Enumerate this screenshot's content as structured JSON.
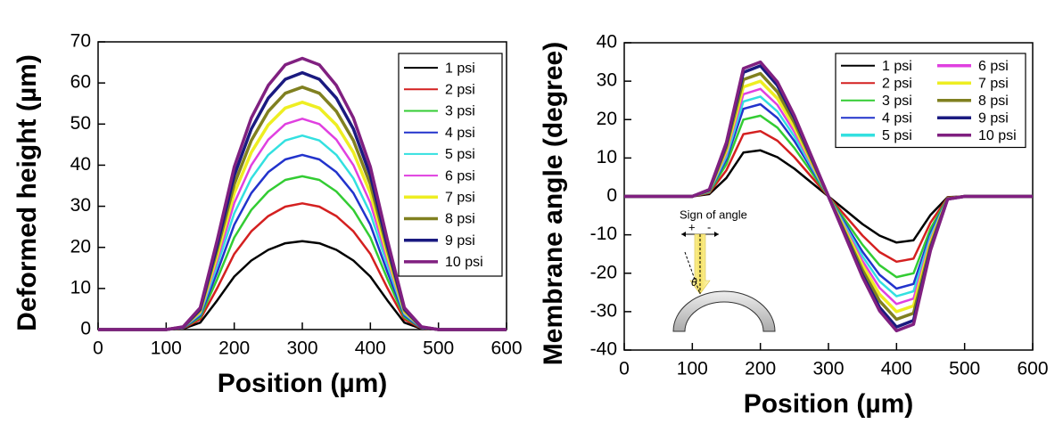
{
  "chart_data": [
    {
      "type": "line",
      "x_label": "Position (µm)",
      "y_label": "Deformed height (µm)",
      "x": [
        0,
        50,
        100,
        125,
        150,
        175,
        200,
        225,
        250,
        275,
        300,
        325,
        350,
        375,
        400,
        425,
        450,
        475,
        500,
        550,
        600
      ],
      "xlim": [
        0,
        600
      ],
      "xticks": [
        0,
        100,
        200,
        300,
        400,
        500,
        600
      ],
      "ylim": [
        0,
        70
      ],
      "yticks": [
        0,
        10,
        20,
        30,
        40,
        50,
        60,
        70
      ],
      "legend": "upper right",
      "legend_columns": 1,
      "series": [
        {
          "name": "1 psi",
          "color": "#000000",
          "values": [
            0,
            0,
            0,
            0.2,
            1.7,
            7.1,
            12.9,
            16.8,
            19.4,
            21,
            21.5,
            21,
            19.4,
            16.8,
            12.9,
            7.1,
            1.7,
            0.2,
            0,
            0,
            0
          ]
        },
        {
          "name": "2 psi",
          "color": "#d42020",
          "values": [
            0,
            0,
            0,
            0.3,
            2.5,
            10.1,
            18.4,
            23.9,
            27.6,
            29.9,
            30.7,
            29.9,
            27.6,
            23.9,
            18.4,
            10.1,
            2.5,
            0.3,
            0,
            0,
            0
          ]
        },
        {
          "name": "3 psi",
          "color": "#33cc33",
          "values": [
            0,
            0,
            0,
            0.4,
            3,
            12.3,
            22.4,
            29.1,
            33.6,
            36.4,
            37.3,
            36.4,
            33.6,
            29.1,
            22.4,
            12.3,
            3,
            0.4,
            0,
            0,
            0
          ]
        },
        {
          "name": "4 psi",
          "color": "#2233cc",
          "values": [
            0,
            0,
            0,
            0.4,
            3.4,
            14,
            25.5,
            33.2,
            38.3,
            41.4,
            42.5,
            41.4,
            38.3,
            33.2,
            25.5,
            14,
            3.4,
            0.4,
            0,
            0,
            0
          ]
        },
        {
          "name": "5 psi",
          "color": "#33e0e0",
          "values": [
            0,
            0,
            0,
            0.5,
            3.8,
            15.6,
            28.3,
            36.8,
            42.5,
            46,
            47.2,
            46,
            42.5,
            36.8,
            28.3,
            15.6,
            3.8,
            0.5,
            0,
            0,
            0
          ]
        },
        {
          "name": "6 psi",
          "color": "#e040e0",
          "values": [
            0,
            0,
            0,
            0.5,
            4.1,
            16.9,
            30.8,
            40,
            46.2,
            50,
            51.3,
            50,
            46.2,
            40,
            30.8,
            16.9,
            4.1,
            0.5,
            0,
            0,
            0
          ]
        },
        {
          "name": "7 psi",
          "color": "#eeee22",
          "values": [
            0,
            0,
            0,
            0.6,
            4.4,
            18.2,
            33.2,
            43.1,
            49.8,
            53.9,
            55.3,
            53.9,
            49.8,
            43.1,
            33.2,
            18.2,
            4.4,
            0.6,
            0,
            0,
            0
          ]
        },
        {
          "name": "8 psi",
          "color": "#808020",
          "values": [
            0,
            0,
            0,
            0.6,
            4.7,
            19.5,
            35.4,
            46,
            53.1,
            57.5,
            59,
            57.5,
            53.1,
            46,
            35.4,
            19.5,
            4.7,
            0.6,
            0,
            0,
            0
          ]
        },
        {
          "name": "9 psi",
          "color": "#1a1a80",
          "values": [
            0,
            0,
            0,
            0.6,
            5,
            20.6,
            37.5,
            48.8,
            56.3,
            60.9,
            62.5,
            60.9,
            56.3,
            48.8,
            37.5,
            20.6,
            5,
            0.6,
            0,
            0,
            0
          ]
        },
        {
          "name": "10 psi",
          "color": "#802080",
          "values": [
            0,
            0,
            0,
            0.7,
            5.3,
            21.8,
            39.6,
            51.5,
            59.4,
            64.4,
            66,
            64.4,
            59.4,
            51.5,
            39.6,
            21.8,
            5.3,
            0.7,
            0,
            0,
            0
          ]
        }
      ]
    },
    {
      "type": "line",
      "x_label": "Position (µm)",
      "y_label": "Membrane angle (degree)",
      "x": [
        0,
        50,
        100,
        125,
        150,
        175,
        200,
        225,
        250,
        275,
        300,
        325,
        350,
        375,
        400,
        425,
        450,
        475,
        500,
        550,
        600
      ],
      "xlim": [
        0,
        600
      ],
      "xticks": [
        0,
        100,
        200,
        300,
        400,
        500,
        600
      ],
      "ylim": [
        -40,
        40
      ],
      "yticks": [
        -40,
        -30,
        -20,
        -10,
        0,
        10,
        20,
        30,
        40
      ],
      "legend": "upper right",
      "legend_columns": 2,
      "annotations": [
        "Sign of angle",
        "+",
        "-",
        "θ"
      ],
      "series": [
        {
          "name": "1 psi",
          "color": "#000000",
          "values": [
            0,
            0,
            0,
            0.6,
            4.8,
            11.4,
            12,
            10.2,
            7.2,
            3.6,
            0,
            -3.6,
            -7.2,
            -10.2,
            -12,
            -11.4,
            -4.8,
            -0.2,
            0,
            0,
            0
          ]
        },
        {
          "name": "2 psi",
          "color": "#d42020",
          "values": [
            0,
            0,
            0,
            0.9,
            6.8,
            16.2,
            17,
            14.5,
            10.2,
            5.1,
            0,
            -5.1,
            -10.2,
            -14.5,
            -17,
            -16.2,
            -6.8,
            -0.3,
            0,
            0,
            0
          ]
        },
        {
          "name": "3 psi",
          "color": "#33cc33",
          "values": [
            0,
            0,
            0,
            1.1,
            8.4,
            20,
            21,
            17.9,
            12.6,
            6.3,
            0,
            -6.3,
            -12.6,
            -17.9,
            -21,
            -20,
            -8.4,
            -0.4,
            0,
            0,
            0
          ]
        },
        {
          "name": "4 psi",
          "color": "#2233cc",
          "values": [
            0,
            0,
            0,
            1.2,
            9.6,
            22.8,
            24,
            20.4,
            14.4,
            7.2,
            0,
            -7.2,
            -14.4,
            -20.4,
            -24,
            -22.8,
            -9.6,
            -0.5,
            0,
            0,
            0
          ]
        },
        {
          "name": "5 psi",
          "color": "#33e0e0",
          "values": [
            0,
            0,
            0,
            1.3,
            10.4,
            24.7,
            26,
            22.1,
            15.6,
            7.8,
            0,
            -7.8,
            -15.6,
            -22.1,
            -26,
            -24.7,
            -10.4,
            -0.5,
            0,
            0,
            0
          ]
        },
        {
          "name": "6 psi",
          "color": "#e040e0",
          "values": [
            0,
            0,
            0,
            1.4,
            11.2,
            26.6,
            28,
            23.8,
            16.8,
            8.4,
            0,
            -8.4,
            -16.8,
            -23.8,
            -28,
            -26.6,
            -11.2,
            -0.6,
            0,
            0,
            0
          ]
        },
        {
          "name": "7 psi",
          "color": "#eeee22",
          "values": [
            0,
            0,
            0,
            1.5,
            12,
            28.5,
            30,
            25.5,
            18,
            9,
            0,
            -9,
            -18,
            -25.5,
            -30,
            -28.5,
            -12,
            -0.6,
            0,
            0,
            0
          ]
        },
        {
          "name": "8 psi",
          "color": "#808020",
          "values": [
            0,
            0,
            0,
            1.6,
            12.8,
            30.4,
            32,
            27.2,
            19.2,
            9.6,
            0,
            -9.6,
            -19.2,
            -27.2,
            -32,
            -30.4,
            -12.8,
            -0.6,
            0,
            0,
            0
          ]
        },
        {
          "name": "9 psi",
          "color": "#1a1a80",
          "values": [
            0,
            0,
            0,
            1.7,
            13.6,
            32.3,
            34,
            28.9,
            20.4,
            10.2,
            0,
            -10.2,
            -20.4,
            -28.9,
            -34,
            -32.3,
            -13.6,
            -0.7,
            0,
            0,
            0
          ]
        },
        {
          "name": "10 psi",
          "color": "#802080",
          "values": [
            0,
            0,
            0,
            1.8,
            14,
            33.3,
            35,
            29.8,
            21,
            10.5,
            0,
            -10.5,
            -21,
            -29.8,
            -35,
            -33.3,
            -14,
            -0.7,
            0,
            0,
            0
          ]
        }
      ]
    }
  ]
}
